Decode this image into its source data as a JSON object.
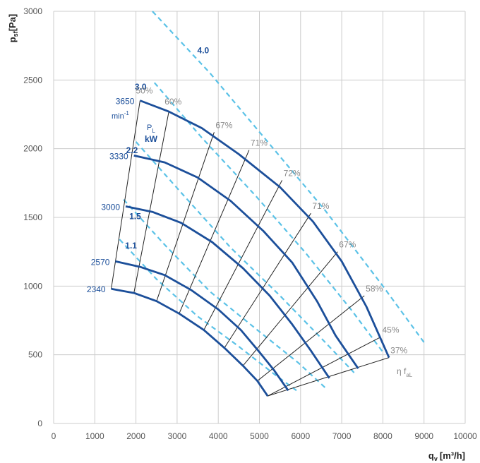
{
  "chart_data": {
    "type": "line",
    "title": "",
    "xlabel": "q",
    "xlabel_sub": "v",
    "xlabel_unit": "[m³/h]",
    "ylabel": "p",
    "ylabel_sub": "sf",
    "ylabel_unit": "[Pa]",
    "xlim": [
      0,
      10000
    ],
    "ylim": [
      0,
      3000
    ],
    "xticks": [
      0,
      1000,
      2000,
      3000,
      4000,
      5000,
      6000,
      7000,
      8000,
      9000,
      10000
    ],
    "yticks": [
      0,
      500,
      1000,
      1500,
      2000,
      2500,
      3000
    ],
    "xtick_labels": [
      "0",
      "1000",
      "2000",
      "3000",
      "4000",
      "5000",
      "6000",
      "7000",
      "8000",
      "9000",
      "10000"
    ],
    "ytick_labels": [
      "0",
      "500",
      "1000",
      "1500",
      "2000",
      "2500",
      "3000"
    ],
    "grid": true,
    "colors": {
      "speed_curve": "#1c4f9a",
      "power_curve": "#5bc2e7",
      "efficiency_line": "#222222",
      "efficiency_label": "#888888",
      "grid": "#cccccc"
    },
    "speed_unit_label": "min",
    "speed_unit_exp": "-1",
    "power_unit_symbol": "P",
    "power_unit_sub": "L",
    "power_unit": "kW",
    "efficiency_symbol": "η f",
    "efficiency_sub": "aL",
    "speed_curves": [
      {
        "name": "3650",
        "x": [
          2100,
          2800,
          3600,
          4500,
          5500,
          6300,
          7000,
          7600,
          8150
        ],
        "y": [
          2350,
          2270,
          2150,
          1960,
          1720,
          1470,
          1180,
          850,
          480
        ]
      },
      {
        "name": "3330",
        "x": [
          1950,
          2700,
          3500,
          4300,
          5100,
          5800,
          6400,
          6850,
          7400
        ],
        "y": [
          1950,
          1900,
          1790,
          1620,
          1400,
          1170,
          890,
          640,
          400
        ]
      },
      {
        "name": "3000",
        "x": [
          1750,
          2400,
          3100,
          3850,
          4600,
          5250,
          5800,
          6250,
          6700
        ],
        "y": [
          1580,
          1540,
          1460,
          1320,
          1130,
          930,
          720,
          530,
          330
        ]
      },
      {
        "name": "2570",
        "x": [
          1500,
          2100,
          2700,
          3350,
          4000,
          4550,
          5000,
          5350,
          5700
        ],
        "y": [
          1180,
          1140,
          1080,
          970,
          830,
          680,
          520,
          390,
          240
        ]
      },
      {
        "name": "2340",
        "x": [
          1400,
          1950,
          2500,
          3050,
          3650,
          4150,
          4600,
          4950,
          5200
        ],
        "y": [
          980,
          950,
          890,
          800,
          680,
          550,
          420,
          310,
          200
        ]
      }
    ],
    "efficiency_lines": [
      {
        "label": "50%",
        "x": [
          2100,
          1400
        ],
        "y": [
          2350,
          980
        ]
      },
      {
        "label": "60%",
        "x": [
          2800,
          1950
        ],
        "y": [
          2270,
          950
        ]
      },
      {
        "label": "67%",
        "x": [
          3900,
          2500
        ],
        "y": [
          2120,
          890
        ]
      },
      {
        "label": "71%",
        "x": [
          4750,
          3050
        ],
        "y": [
          1990,
          800
        ]
      },
      {
        "label": "72%",
        "x": [
          5550,
          3650
        ],
        "y": [
          1770,
          680
        ]
      },
      {
        "label": "71%",
        "x": [
          6250,
          4150
        ],
        "y": [
          1530,
          550
        ]
      },
      {
        "label": "67%",
        "x": [
          6900,
          4600
        ],
        "y": [
          1250,
          420
        ]
      },
      {
        "label": "58%",
        "x": [
          7550,
          4950
        ],
        "y": [
          930,
          310
        ]
      },
      {
        "label": "45%",
        "x": [
          7950,
          5200
        ],
        "y": [
          630,
          200
        ]
      },
      {
        "label": "37%",
        "x": [
          8150,
          5200
        ],
        "y": [
          480,
          200
        ]
      }
    ],
    "power_curves": [
      {
        "name": "4.0",
        "x": [
          2400,
          3800,
          5200,
          6600,
          8000,
          9000
        ],
        "y": [
          3000,
          2550,
          2050,
          1550,
          1000,
          590
        ]
      },
      {
        "name": "3.0",
        "x": [
          2450,
          3600,
          4900,
          6100,
          7250,
          8000
        ],
        "y": [
          2480,
          2080,
          1660,
          1250,
          820,
          520
        ]
      },
      {
        "name": "2.2",
        "x": [
          2000,
          3100,
          4300,
          5500,
          6600,
          7300
        ],
        "y": [
          2050,
          1680,
          1280,
          930,
          590,
          370
        ]
      },
      {
        "name": "1.5",
        "x": [
          1700,
          2700,
          3800,
          4950,
          5950,
          6600
        ],
        "y": [
          1630,
          1300,
          960,
          680,
          440,
          260
        ]
      },
      {
        "name": "1.1",
        "x": [
          1600,
          2500,
          3500,
          4500,
          5400,
          5900
        ],
        "y": [
          1340,
          1050,
          780,
          560,
          350,
          240
        ]
      }
    ]
  }
}
